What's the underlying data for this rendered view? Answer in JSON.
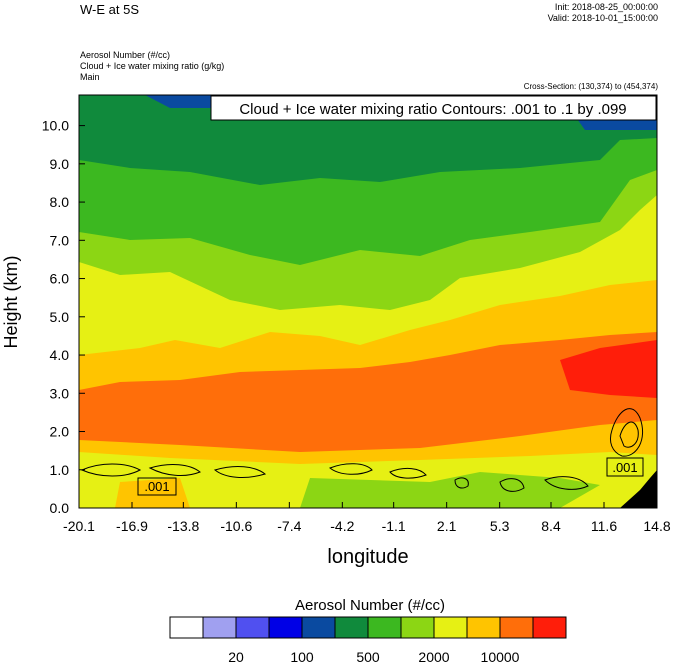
{
  "header": {
    "title": "W-E at 5S",
    "init": "Init: 2018-08-25_00:00:00",
    "valid": "Valid: 2018-10-01_15:00:00",
    "fields": [
      "Aerosol Number   (#/cc)",
      "Cloud + Ice water mixing ratio   (g/kg)",
      "Main"
    ],
    "cross_section": "Cross-Section: (130,374) to (454,374)"
  },
  "chart_data": {
    "type": "heatmap",
    "title": "W-E at 5S",
    "contour_label": "Cloud + Ice water mixing ratio Contours: .001 to .1 by .099",
    "xlabel": "longitude",
    "ylabel": "Height (km)",
    "x_ticks": [
      "-20.1",
      "-16.9",
      "-13.8",
      "-10.6",
      "-7.4",
      "-4.2",
      "-1.1",
      "2.1",
      "5.3",
      "8.4",
      "11.6",
      "14.8"
    ],
    "y_ticks": [
      "0.0",
      "1.0",
      "2.0",
      "3.0",
      "4.0",
      "5.0",
      "6.0",
      "7.0",
      "8.0",
      "9.0",
      "10.0"
    ],
    "xlim": [
      -20.1,
      14.8
    ],
    "ylim": [
      0.0,
      10.8
    ],
    "contour_value_labels": [
      ".001",
      ".001"
    ],
    "colorbar": {
      "title": "Aerosol Number  (#/cc)",
      "colors": [
        "#ffffff",
        "#a0a0f0",
        "#5050f0",
        "#0000e6",
        "#0a4aa0",
        "#108a3c",
        "#3cb820",
        "#8cd614",
        "#e6f014",
        "#ffc400",
        "#ff6e0a",
        "#ff1e0a"
      ],
      "tick_labels": [
        "20",
        "100",
        "500",
        "2000",
        "10000"
      ]
    },
    "colors": {
      "blue": "#0a4aa0",
      "dark_green": "#108a3c",
      "green": "#3cb820",
      "light_green": "#8cd614",
      "yellow": "#e6f014",
      "gold": "#ffc400",
      "orange": "#ff6e0a",
      "red": "#ff1e0a",
      "black": "#000000"
    }
  }
}
